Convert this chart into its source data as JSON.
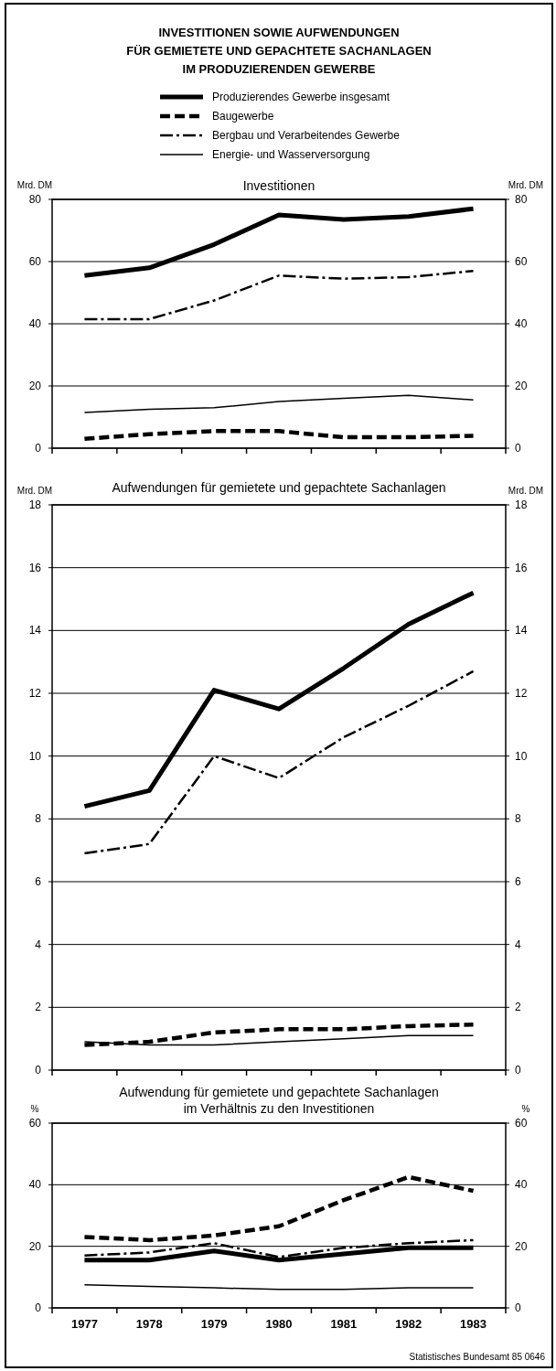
{
  "chart_data": [
    {
      "type": "line",
      "title": "INVESTITIONEN SOWIE AUFWENDUNGEN\nFÜR GEMIETETE UND GEPACHTETE SACHANLAGEN\nIM PRODUZIERENDEN GEWERBE",
      "subtitle": "Investitionen",
      "ylabel": "Mrd. DM",
      "y2label": "Mrd. DM",
      "categories": [
        null,
        null,
        null,
        null,
        null,
        null,
        null
      ],
      "ylim": [
        0,
        80
      ],
      "yticks": [
        0,
        20,
        40,
        60,
        80
      ],
      "y2lim": [
        0,
        80
      ],
      "y2ticks": [
        0,
        20,
        40,
        60,
        80
      ],
      "grid": "y",
      "legend": "top",
      "tick_labels": "y",
      "series": [
        {
          "name": "Produzierendes Gewerbe insgesamt",
          "color": "#000000",
          "line_style": "solid",
          "values": [
            55.5,
            58,
            65.5,
            75,
            73.5,
            74.5,
            77
          ]
        },
        {
          "name": "Baugewerbe",
          "color": "#000000",
          "line_style": "dashed",
          "values": [
            3,
            4.5,
            5.5,
            5.5,
            3.5,
            3.5,
            4
          ]
        },
        {
          "name": "Bergbau und Verarbeitendes Gewerbe",
          "color": "#000000",
          "line_style": "dashdot",
          "values": [
            41.5,
            41.5,
            47.5,
            55.5,
            54.5,
            55,
            57
          ]
        },
        {
          "name": "Energie- und Wasserversorgung",
          "color": "#000000",
          "line_style": "solid",
          "values": [
            11.5,
            12.5,
            13,
            15,
            16,
            17,
            15.5
          ]
        }
      ]
    },
    {
      "type": "line",
      "title": "Aufwendungen für gemietete und gepachtete Sachanlagen",
      "ylabel": "Mrd. DM",
      "y2label": "Mrd. DM",
      "categories": [
        null,
        null,
        null,
        null,
        null,
        null,
        null
      ],
      "ylim": [
        0,
        18
      ],
      "yticks": [
        0,
        2,
        4,
        6,
        8,
        10,
        12,
        14,
        16,
        18
      ],
      "y2lim": [
        0,
        18
      ],
      "y2ticks": [
        0,
        2,
        4,
        6,
        8,
        10,
        12,
        14,
        16,
        18
      ],
      "grid": "y",
      "tick_labels": "y",
      "series": [
        {
          "color": "#000000",
          "line_style": "solid",
          "values": [
            8.4,
            8.9,
            12.1,
            11.5,
            12.8,
            14.2,
            15.2
          ]
        },
        {
          "color": "#000000",
          "line_style": "dashed",
          "values": [
            0.8,
            0.9,
            1.2,
            1.3,
            1.3,
            1.4,
            1.45
          ]
        },
        {
          "color": "#000000",
          "line_style": "dashdot",
          "values": [
            6.9,
            7.2,
            10,
            9.3,
            10.6,
            11.6,
            12.7
          ]
        },
        {
          "color": "#000000",
          "line_style": "solid",
          "values": [
            0.9,
            0.8,
            0.8,
            0.9,
            1,
            1.1,
            1.1
          ]
        }
      ]
    },
    {
      "type": "line",
      "title": "Aufwendung für gemietete und gepachtete Sachanlagen\nim Verhältnis zu den Investitionen",
      "ylabel": "%",
      "y2label": "%",
      "categories": [
        "1977",
        "1978",
        "1979",
        "1980",
        "1981",
        "1982",
        "1983"
      ],
      "ylim": [
        0,
        60
      ],
      "yticks": [
        0,
        20,
        40,
        60
      ],
      "y2lim": [
        0,
        60
      ],
      "y2ticks": [
        0,
        20,
        40,
        60
      ],
      "grid": "y",
      "annotations": [
        "Statistisches Bundesamt 85 0646"
      ],
      "series": [
        {
          "color": "#000000",
          "line_style": "solid",
          "values": [
            15.5,
            15.5,
            18.5,
            15.5,
            17.5,
            19.5,
            19.5
          ]
        },
        {
          "color": "#000000",
          "line_style": "dashed",
          "values": [
            23,
            22,
            23.5,
            26.5,
            35,
            42.5,
            38
          ]
        },
        {
          "color": "#000000",
          "line_style": "dashdot",
          "values": [
            17,
            18,
            21,
            16.5,
            19.5,
            21,
            22
          ]
        },
        {
          "color": "#000000",
          "line_style": "solid",
          "values": [
            7.5,
            7,
            6.5,
            6,
            6,
            6.5,
            6.5
          ]
        }
      ]
    }
  ]
}
